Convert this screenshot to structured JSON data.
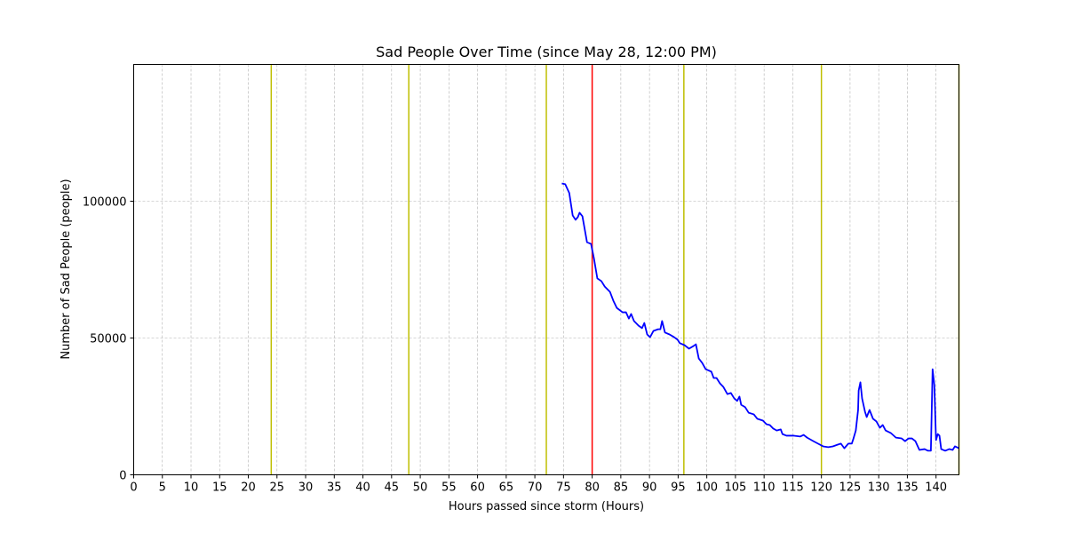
{
  "chart_data": {
    "type": "line",
    "title": "Sad People Over Time (since May 28, 12:00 PM)",
    "x_label": "Hours passed since storm (Hours)",
    "y_label": "Number of Sad People (people)",
    "xlim": [
      0,
      144
    ],
    "ylim": [
      0,
      150000
    ],
    "xticks": [
      0,
      5,
      10,
      15,
      20,
      25,
      30,
      35,
      40,
      45,
      50,
      55,
      60,
      65,
      70,
      75,
      80,
      85,
      90,
      95,
      100,
      105,
      110,
      115,
      120,
      125,
      130,
      135,
      140
    ],
    "yticks": [
      0,
      50000,
      100000
    ],
    "grid": true,
    "vlines": [
      {
        "x": 24,
        "color": "#bfbf00"
      },
      {
        "x": 48,
        "color": "#bfbf00"
      },
      {
        "x": 72,
        "color": "#bfbf00"
      },
      {
        "x": 80,
        "color": "#ff0000"
      },
      {
        "x": 96,
        "color": "#bfbf00"
      },
      {
        "x": 120,
        "color": "#bfbf00"
      },
      {
        "x": 144,
        "color": "#bfbf00"
      }
    ],
    "series": [
      {
        "color": "#0000ff",
        "x": [
          74.7,
          75.3,
          76,
          76.6,
          77.1,
          77.5,
          77.8,
          78.3,
          79.1,
          79.8,
          80.3,
          80.9,
          81.6,
          82.2,
          83.1,
          83.7,
          84.3,
          85.3,
          85.9,
          86.4,
          86.8,
          87.3,
          88.1,
          88.7,
          89.1,
          89.6,
          90.1,
          90.7,
          91.5,
          91.9,
          92.2,
          92.7,
          93.5,
          94.3,
          94.9,
          95.3,
          96.1,
          96.9,
          97.7,
          98.1,
          98.6,
          99.2,
          99.8,
          100.8,
          101.2,
          101.7,
          102.3,
          102.9,
          103.6,
          104.2,
          104.8,
          105.3,
          105.7,
          106,
          106.7,
          107.3,
          108.2,
          108.8,
          109.8,
          110.4,
          111,
          111.6,
          112.2,
          112.9,
          113.2,
          113.9,
          115.2,
          116.3,
          116.9,
          117.5,
          118.6,
          119.4,
          120.3,
          121.2,
          122,
          122.8,
          123.4,
          124,
          124.7,
          125.3,
          125.6,
          126,
          126.4,
          126.5,
          126.8,
          127.1,
          127.6,
          127.9,
          128.4,
          129,
          129.6,
          130.2,
          130.7,
          131.2,
          132.1,
          133,
          134,
          134.6,
          135.2,
          135.8,
          136.4,
          137.1,
          138,
          138.6,
          139.1,
          139.4,
          139.7,
          140,
          140.3,
          140.6,
          140.9,
          141.6,
          142.3,
          142.9,
          143.3,
          144
        ],
        "values": [
          106500,
          106200,
          103000,
          94800,
          93200,
          94200,
          95800,
          94500,
          85000,
          84400,
          79200,
          71800,
          70800,
          68800,
          66900,
          63600,
          61000,
          59400,
          59400,
          57100,
          58800,
          56200,
          54500,
          53600,
          55500,
          51300,
          50300,
          52600,
          53200,
          53200,
          56200,
          52000,
          51300,
          50300,
          49400,
          48100,
          47400,
          46100,
          47100,
          47700,
          42500,
          40900,
          38600,
          37700,
          35400,
          35400,
          33400,
          32100,
          29500,
          29900,
          27900,
          27000,
          28600,
          25600,
          24700,
          22700,
          22100,
          20500,
          19800,
          18500,
          18200,
          16900,
          16200,
          16600,
          14900,
          14300,
          14300,
          14000,
          14600,
          13600,
          12300,
          11400,
          10400,
          10100,
          10400,
          11000,
          11400,
          9700,
          11400,
          11400,
          13300,
          16200,
          23700,
          30800,
          33800,
          27900,
          23100,
          21100,
          23700,
          20500,
          19500,
          17200,
          18200,
          16200,
          15300,
          13600,
          13300,
          12300,
          13300,
          13300,
          12300,
          9100,
          9400,
          8800,
          8800,
          38600,
          32800,
          12700,
          14900,
          14300,
          9400,
          8800,
          9400,
          9100,
          10400,
          9700
        ]
      }
    ]
  }
}
